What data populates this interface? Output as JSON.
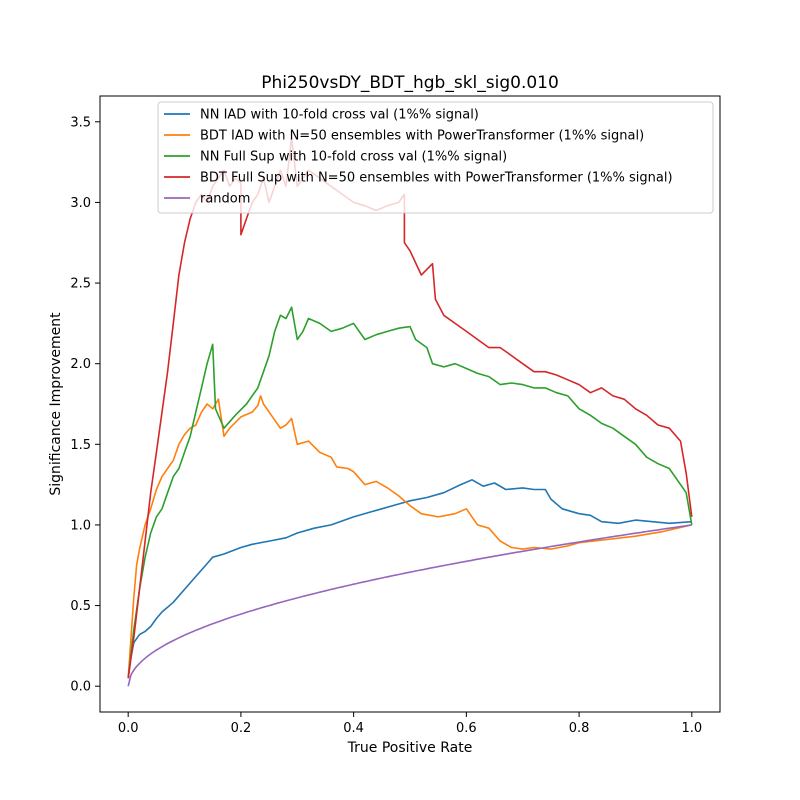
{
  "chart_data": {
    "type": "line",
    "title": "Phi250vsDY_BDT_hgb_skl_sig0.010",
    "xlabel": "True Positive Rate",
    "ylabel": "Significance Improvement",
    "xlim": [
      -0.05,
      1.05
    ],
    "ylim": [
      -0.16,
      3.66
    ],
    "xticks": [
      0.0,
      0.2,
      0.4,
      0.6,
      0.8,
      1.0
    ],
    "xtick_labels": [
      "0.0",
      "0.2",
      "0.4",
      "0.6",
      "0.8",
      "1.0"
    ],
    "yticks": [
      0.0,
      0.5,
      1.0,
      1.5,
      2.0,
      2.5,
      3.0,
      3.5
    ],
    "ytick_labels": [
      "0.0",
      "0.5",
      "1.0",
      "1.5",
      "2.0",
      "2.5",
      "3.0",
      "3.5"
    ],
    "grid": false,
    "legend_position": "top-right",
    "series": [
      {
        "name": "NN IAD with 10-fold cross val (1%% signal)",
        "color": "#1f77b4",
        "points": [
          [
            0.0,
            0.05
          ],
          [
            0.005,
            0.18
          ],
          [
            0.01,
            0.27
          ],
          [
            0.02,
            0.32
          ],
          [
            0.03,
            0.34
          ],
          [
            0.04,
            0.37
          ],
          [
            0.05,
            0.42
          ],
          [
            0.06,
            0.46
          ],
          [
            0.08,
            0.52
          ],
          [
            0.1,
            0.6
          ],
          [
            0.12,
            0.68
          ],
          [
            0.14,
            0.76
          ],
          [
            0.15,
            0.8
          ],
          [
            0.17,
            0.82
          ],
          [
            0.2,
            0.86
          ],
          [
            0.22,
            0.88
          ],
          [
            0.25,
            0.9
          ],
          [
            0.28,
            0.92
          ],
          [
            0.3,
            0.95
          ],
          [
            0.33,
            0.98
          ],
          [
            0.36,
            1.0
          ],
          [
            0.4,
            1.05
          ],
          [
            0.43,
            1.08
          ],
          [
            0.45,
            1.1
          ],
          [
            0.48,
            1.13
          ],
          [
            0.5,
            1.15
          ],
          [
            0.53,
            1.17
          ],
          [
            0.56,
            1.2
          ],
          [
            0.59,
            1.25
          ],
          [
            0.61,
            1.28
          ],
          [
            0.63,
            1.24
          ],
          [
            0.65,
            1.26
          ],
          [
            0.67,
            1.22
          ],
          [
            0.7,
            1.23
          ],
          [
            0.72,
            1.22
          ],
          [
            0.74,
            1.22
          ],
          [
            0.75,
            1.16
          ],
          [
            0.77,
            1.1
          ],
          [
            0.8,
            1.07
          ],
          [
            0.82,
            1.06
          ],
          [
            0.84,
            1.02
          ],
          [
            0.87,
            1.01
          ],
          [
            0.9,
            1.03
          ],
          [
            0.93,
            1.02
          ],
          [
            0.96,
            1.01
          ],
          [
            1.0,
            1.02
          ]
        ]
      },
      {
        "name": "BDT IAD with N=50 ensembles with PowerTransformer (1%% signal)",
        "color": "#ff7f0e",
        "points": [
          [
            0.0,
            0.05
          ],
          [
            0.005,
            0.3
          ],
          [
            0.01,
            0.55
          ],
          [
            0.015,
            0.75
          ],
          [
            0.02,
            0.85
          ],
          [
            0.03,
            1.0
          ],
          [
            0.04,
            1.1
          ],
          [
            0.05,
            1.22
          ],
          [
            0.06,
            1.3
          ],
          [
            0.07,
            1.35
          ],
          [
            0.08,
            1.4
          ],
          [
            0.09,
            1.5
          ],
          [
            0.1,
            1.56
          ],
          [
            0.11,
            1.6
          ],
          [
            0.12,
            1.62
          ],
          [
            0.13,
            1.7
          ],
          [
            0.14,
            1.75
          ],
          [
            0.15,
            1.72
          ],
          [
            0.16,
            1.78
          ],
          [
            0.17,
            1.55
          ],
          [
            0.18,
            1.6
          ],
          [
            0.2,
            1.67
          ],
          [
            0.22,
            1.7
          ],
          [
            0.23,
            1.74
          ],
          [
            0.235,
            1.8
          ],
          [
            0.24,
            1.75
          ],
          [
            0.25,
            1.7
          ],
          [
            0.27,
            1.6
          ],
          [
            0.28,
            1.62
          ],
          [
            0.29,
            1.66
          ],
          [
            0.3,
            1.5
          ],
          [
            0.32,
            1.52
          ],
          [
            0.34,
            1.45
          ],
          [
            0.36,
            1.42
          ],
          [
            0.37,
            1.36
          ],
          [
            0.39,
            1.35
          ],
          [
            0.4,
            1.33
          ],
          [
            0.42,
            1.25
          ],
          [
            0.44,
            1.27
          ],
          [
            0.46,
            1.23
          ],
          [
            0.48,
            1.18
          ],
          [
            0.5,
            1.12
          ],
          [
            0.52,
            1.07
          ],
          [
            0.55,
            1.05
          ],
          [
            0.58,
            1.07
          ],
          [
            0.6,
            1.1
          ],
          [
            0.61,
            1.05
          ],
          [
            0.62,
            1.0
          ],
          [
            0.64,
            0.98
          ],
          [
            0.66,
            0.9
          ],
          [
            0.68,
            0.86
          ],
          [
            0.7,
            0.85
          ],
          [
            0.72,
            0.86
          ],
          [
            0.75,
            0.85
          ],
          [
            0.78,
            0.87
          ],
          [
            0.8,
            0.89
          ],
          [
            0.85,
            0.91
          ],
          [
            0.9,
            0.93
          ],
          [
            0.95,
            0.96
          ],
          [
            1.0,
            1.0
          ]
        ]
      },
      {
        "name": "NN Full Sup with 10-fold cross val (1%% signal)",
        "color": "#2ca02c",
        "points": [
          [
            0.0,
            0.05
          ],
          [
            0.005,
            0.2
          ],
          [
            0.01,
            0.35
          ],
          [
            0.02,
            0.6
          ],
          [
            0.03,
            0.8
          ],
          [
            0.04,
            0.95
          ],
          [
            0.05,
            1.05
          ],
          [
            0.06,
            1.1
          ],
          [
            0.07,
            1.2
          ],
          [
            0.08,
            1.3
          ],
          [
            0.09,
            1.35
          ],
          [
            0.1,
            1.45
          ],
          [
            0.11,
            1.55
          ],
          [
            0.12,
            1.7
          ],
          [
            0.13,
            1.85
          ],
          [
            0.14,
            2.0
          ],
          [
            0.15,
            2.12
          ],
          [
            0.155,
            1.72
          ],
          [
            0.17,
            1.6
          ],
          [
            0.19,
            1.68
          ],
          [
            0.21,
            1.75
          ],
          [
            0.23,
            1.85
          ],
          [
            0.24,
            1.95
          ],
          [
            0.25,
            2.05
          ],
          [
            0.26,
            2.2
          ],
          [
            0.27,
            2.3
          ],
          [
            0.28,
            2.28
          ],
          [
            0.29,
            2.35
          ],
          [
            0.3,
            2.15
          ],
          [
            0.31,
            2.2
          ],
          [
            0.32,
            2.28
          ],
          [
            0.34,
            2.25
          ],
          [
            0.36,
            2.2
          ],
          [
            0.38,
            2.22
          ],
          [
            0.4,
            2.25
          ],
          [
            0.42,
            2.15
          ],
          [
            0.44,
            2.18
          ],
          [
            0.46,
            2.2
          ],
          [
            0.48,
            2.22
          ],
          [
            0.5,
            2.23
          ],
          [
            0.51,
            2.15
          ],
          [
            0.53,
            2.1
          ],
          [
            0.54,
            2.0
          ],
          [
            0.56,
            1.98
          ],
          [
            0.58,
            2.0
          ],
          [
            0.6,
            1.97
          ],
          [
            0.62,
            1.94
          ],
          [
            0.64,
            1.92
          ],
          [
            0.66,
            1.87
          ],
          [
            0.68,
            1.88
          ],
          [
            0.7,
            1.87
          ],
          [
            0.72,
            1.85
          ],
          [
            0.74,
            1.85
          ],
          [
            0.76,
            1.82
          ],
          [
            0.78,
            1.8
          ],
          [
            0.8,
            1.72
          ],
          [
            0.82,
            1.68
          ],
          [
            0.84,
            1.63
          ],
          [
            0.86,
            1.6
          ],
          [
            0.88,
            1.55
          ],
          [
            0.9,
            1.5
          ],
          [
            0.92,
            1.42
          ],
          [
            0.94,
            1.38
          ],
          [
            0.96,
            1.35
          ],
          [
            0.98,
            1.25
          ],
          [
            0.99,
            1.2
          ],
          [
            1.0,
            1.0
          ]
        ]
      },
      {
        "name": "BDT Full Sup with N=50 ensembles with PowerTransformer (1%% signal)",
        "color": "#d62728",
        "points": [
          [
            0.0,
            0.05
          ],
          [
            0.01,
            0.3
          ],
          [
            0.02,
            0.6
          ],
          [
            0.03,
            0.9
          ],
          [
            0.04,
            1.2
          ],
          [
            0.05,
            1.45
          ],
          [
            0.06,
            1.7
          ],
          [
            0.07,
            1.95
          ],
          [
            0.08,
            2.25
          ],
          [
            0.09,
            2.55
          ],
          [
            0.1,
            2.75
          ],
          [
            0.11,
            2.9
          ],
          [
            0.12,
            3.0
          ],
          [
            0.13,
            3.05
          ],
          [
            0.14,
            3.0
          ],
          [
            0.15,
            3.1
          ],
          [
            0.16,
            3.15
          ],
          [
            0.17,
            3.2
          ],
          [
            0.18,
            3.1
          ],
          [
            0.19,
            3.15
          ],
          [
            0.2,
            3.12
          ],
          [
            0.2,
            2.8
          ],
          [
            0.21,
            2.9
          ],
          [
            0.22,
            3.0
          ],
          [
            0.23,
            3.05
          ],
          [
            0.24,
            3.15
          ],
          [
            0.25,
            3.0
          ],
          [
            0.26,
            3.1
          ],
          [
            0.27,
            3.2
          ],
          [
            0.28,
            3.1
          ],
          [
            0.29,
            3.4
          ],
          [
            0.3,
            3.1
          ],
          [
            0.32,
            3.2
          ],
          [
            0.34,
            3.15
          ],
          [
            0.36,
            3.1
          ],
          [
            0.38,
            3.05
          ],
          [
            0.4,
            3.0
          ],
          [
            0.42,
            2.98
          ],
          [
            0.44,
            2.95
          ],
          [
            0.46,
            2.98
          ],
          [
            0.48,
            3.0
          ],
          [
            0.49,
            3.05
          ],
          [
            0.49,
            2.75
          ],
          [
            0.5,
            2.7
          ],
          [
            0.52,
            2.55
          ],
          [
            0.54,
            2.62
          ],
          [
            0.545,
            2.4
          ],
          [
            0.56,
            2.3
          ],
          [
            0.58,
            2.25
          ],
          [
            0.6,
            2.2
          ],
          [
            0.62,
            2.15
          ],
          [
            0.64,
            2.1
          ],
          [
            0.66,
            2.1
          ],
          [
            0.68,
            2.05
          ],
          [
            0.7,
            2.0
          ],
          [
            0.72,
            1.95
          ],
          [
            0.74,
            1.95
          ],
          [
            0.76,
            1.93
          ],
          [
            0.78,
            1.9
          ],
          [
            0.8,
            1.87
          ],
          [
            0.82,
            1.82
          ],
          [
            0.84,
            1.85
          ],
          [
            0.86,
            1.8
          ],
          [
            0.88,
            1.78
          ],
          [
            0.9,
            1.72
          ],
          [
            0.92,
            1.68
          ],
          [
            0.94,
            1.62
          ],
          [
            0.96,
            1.6
          ],
          [
            0.98,
            1.52
          ],
          [
            0.99,
            1.32
          ],
          [
            1.0,
            1.05
          ]
        ]
      },
      {
        "name": "random",
        "color": "#9467bd",
        "function": "sqrt"
      }
    ]
  }
}
